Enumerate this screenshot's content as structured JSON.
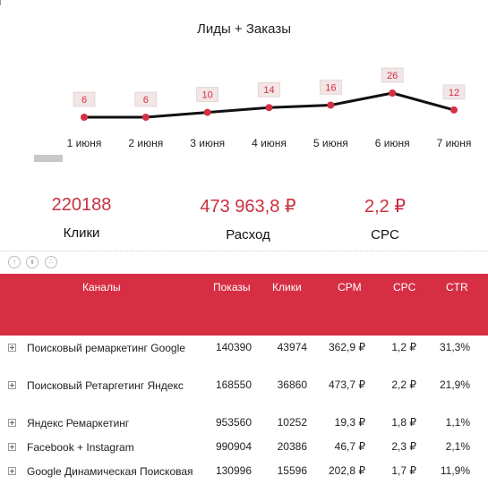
{
  "chart_data": {
    "type": "line",
    "title": "Лиды + Заказы",
    "categories": [
      "1 июня",
      "2 июня",
      "3 июня",
      "4 июня",
      "5 июня",
      "6 июня",
      "7 июня"
    ],
    "series": [
      {
        "values": [
          6,
          6,
          10,
          14,
          16,
          26,
          12
        ]
      }
    ],
    "data_labels": [
      "6",
      "6",
      "10",
      "14",
      "16",
      "26",
      "12"
    ],
    "grid": false,
    "colors": {
      "line": "#111111",
      "point": "#d32f45",
      "label_text": "#d32f45",
      "label_box": "#f2e6e6"
    }
  },
  "kpis": [
    {
      "value": "220188",
      "label": "Клики"
    },
    {
      "value": "473 963,8 ₽",
      "label": "Расход"
    },
    {
      "value": "2,2 ₽",
      "label": "CPC"
    }
  ],
  "toolbar": {
    "icons": [
      "drill-up-icon",
      "drill-down-all-icon",
      "expand-hierarchy-icon"
    ]
  },
  "table": {
    "header_color": "#d62f44",
    "columns": [
      "Каналы",
      "Показы",
      "Клики",
      "CPM",
      "CPC",
      "CTR"
    ],
    "rows": [
      {
        "name": "Поисковый ремаркетинг Google",
        "shows": "140390",
        "clicks": "43974",
        "cpm": "362,9 ₽",
        "cpc": "1,2 ₽",
        "ctr": "31,3%"
      },
      {
        "name": "Поисковый Ретаргетинг Яндекс",
        "shows": "168550",
        "clicks": "36860",
        "cpm": "473,7 ₽",
        "cpc": "2,2 ₽",
        "ctr": "21,9%"
      },
      {
        "name": "Яндекс Ремаркетинг",
        "shows": "953560",
        "clicks": "10252",
        "cpm": "19,3 ₽",
        "cpc": "1,8 ₽",
        "ctr": "1,1%"
      },
      {
        "name": "Facebook + Instagram",
        "shows": "990904",
        "clicks": "20386",
        "cpm": "46,7 ₽",
        "cpc": "2,3 ₽",
        "ctr": "2,1%"
      },
      {
        "name": "Google Динамическая Поисковая",
        "shows": "130996",
        "clicks": "15596",
        "cpm": "202,8 ₽",
        "cpc": "1,7 ₽",
        "ctr": "11,9%"
      }
    ]
  }
}
